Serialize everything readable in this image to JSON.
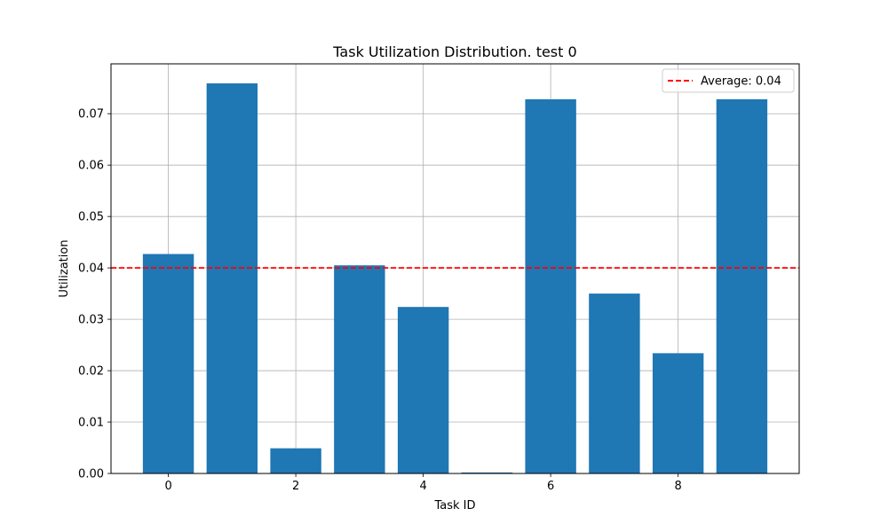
{
  "chart_data": {
    "type": "bar",
    "title": "Task Utilization Distribution. test 0",
    "xlabel": "Task ID",
    "ylabel": "Utilization",
    "categories": [
      0,
      1,
      2,
      3,
      4,
      5,
      6,
      7,
      8,
      9
    ],
    "values": [
      0.0427,
      0.0759,
      0.0049,
      0.0405,
      0.0324,
      0.0002,
      0.0728,
      0.035,
      0.0234,
      0.0728
    ],
    "xlim": [
      -0.9,
      9.9
    ],
    "ylim": [
      0,
      0.0797
    ],
    "xticks": [
      0,
      2,
      4,
      6,
      8
    ],
    "xtick_labels": [
      "0",
      "2",
      "4",
      "6",
      "8"
    ],
    "yticks": [
      0.0,
      0.01,
      0.02,
      0.03,
      0.04,
      0.05,
      0.06,
      0.07
    ],
    "ytick_labels": [
      "0.00",
      "0.01",
      "0.02",
      "0.03",
      "0.04",
      "0.05",
      "0.06",
      "0.07"
    ],
    "grid": true,
    "bar_color": "#1f77b4",
    "reference_line": {
      "y": 0.04,
      "label": "Average: 0.04",
      "color": "#ff0000",
      "style": "dashed"
    },
    "legend": {
      "placement": "top-right",
      "entries": [
        "Average: 0.04"
      ]
    }
  }
}
